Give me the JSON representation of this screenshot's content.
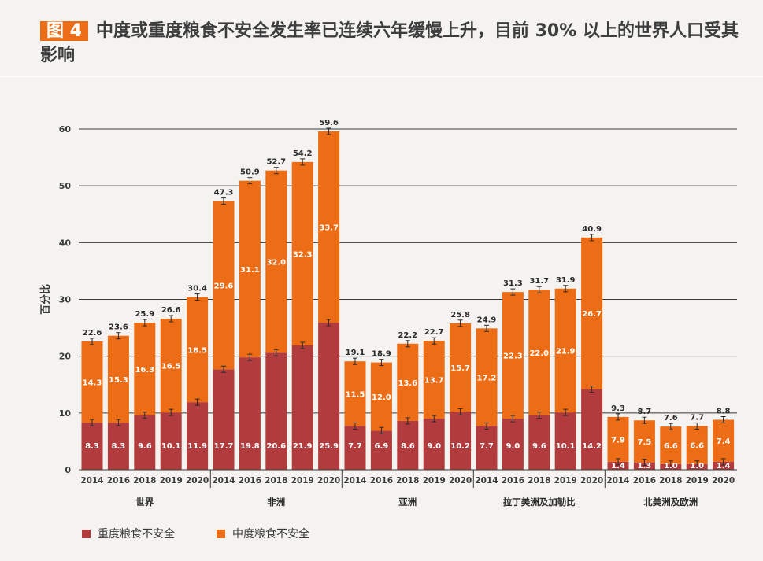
{
  "header": {
    "figure_label": "图 4",
    "title": "中度或重度粮食不安全发生率已连续六年缓慢上升，目前 30% 以上的世界人口受其影响"
  },
  "colors": {
    "severe": "#b23c3d",
    "moderate": "#ec6d15",
    "grid": "#3a3a3a",
    "background": "#f4f3ef"
  },
  "chart_data": {
    "type": "bar",
    "stacked": true,
    "ylabel": "百分比",
    "xlabel": "",
    "ylim": [
      0,
      60
    ],
    "yticks": [
      0,
      10,
      20,
      30,
      40,
      50,
      60
    ],
    "grid": true,
    "error_bars": true,
    "legend_position": "bottom-left",
    "series": [
      {
        "name": "重度粮食不安全",
        "key": "severe"
      },
      {
        "name": "中度粮食不安全",
        "key": "moderate"
      }
    ],
    "groups": [
      {
        "name": "世界",
        "bars": [
          {
            "year": "2014",
            "severe": 8.3,
            "moderate": 14.3,
            "total": 22.6
          },
          {
            "year": "2016",
            "severe": 8.3,
            "moderate": 15.3,
            "total": 23.6
          },
          {
            "year": "2018",
            "severe": 9.6,
            "moderate": 16.3,
            "total": 25.9
          },
          {
            "year": "2019",
            "severe": 10.1,
            "moderate": 16.5,
            "total": 26.6
          },
          {
            "year": "2020",
            "severe": 11.9,
            "moderate": 18.5,
            "total": 30.4
          }
        ]
      },
      {
        "name": "非洲",
        "bars": [
          {
            "year": "2014",
            "severe": 17.7,
            "moderate": 29.6,
            "total": 47.3
          },
          {
            "year": "2016",
            "severe": 19.8,
            "moderate": 31.1,
            "total": 50.9
          },
          {
            "year": "2018",
            "severe": 20.6,
            "moderate": 32.0,
            "total": 52.7
          },
          {
            "year": "2019",
            "severe": 21.9,
            "moderate": 32.3,
            "total": 54.2
          },
          {
            "year": "2020",
            "severe": 25.9,
            "moderate": 33.7,
            "total": 59.6
          }
        ]
      },
      {
        "name": "亚洲",
        "bars": [
          {
            "year": "2014",
            "severe": 7.7,
            "moderate": 11.5,
            "total": 19.1
          },
          {
            "year": "2016",
            "severe": 6.9,
            "moderate": 12.0,
            "total": 18.9
          },
          {
            "year": "2018",
            "severe": 8.6,
            "moderate": 13.6,
            "total": 22.2
          },
          {
            "year": "2019",
            "severe": 9.0,
            "moderate": 13.7,
            "total": 22.7
          },
          {
            "year": "2020",
            "severe": 10.2,
            "moderate": 15.7,
            "total": 25.8
          }
        ]
      },
      {
        "name": "拉丁美洲及加勒比",
        "bars": [
          {
            "year": "2014",
            "severe": 7.7,
            "moderate": 17.2,
            "total": 24.9
          },
          {
            "year": "2016",
            "severe": 9.0,
            "moderate": 22.3,
            "total": 31.3
          },
          {
            "year": "2018",
            "severe": 9.6,
            "moderate": 22.0,
            "total": 31.7
          },
          {
            "year": "2019",
            "severe": 10.1,
            "moderate": 21.9,
            "total": 31.9
          },
          {
            "year": "2020",
            "severe": 14.2,
            "moderate": 26.7,
            "total": 40.9
          }
        ]
      },
      {
        "name": "北美洲及欧洲",
        "bars": [
          {
            "year": "2014",
            "severe": 1.4,
            "moderate": 7.9,
            "total": 9.3
          },
          {
            "year": "2016",
            "severe": 1.3,
            "moderate": 7.5,
            "total": 8.7
          },
          {
            "year": "2018",
            "severe": 1.0,
            "moderate": 6.6,
            "total": 7.6
          },
          {
            "year": "2019",
            "severe": 1.0,
            "moderate": 6.6,
            "total": 7.7
          },
          {
            "year": "2020",
            "severe": 1.4,
            "moderate": 7.4,
            "total": 8.8
          }
        ]
      }
    ]
  }
}
